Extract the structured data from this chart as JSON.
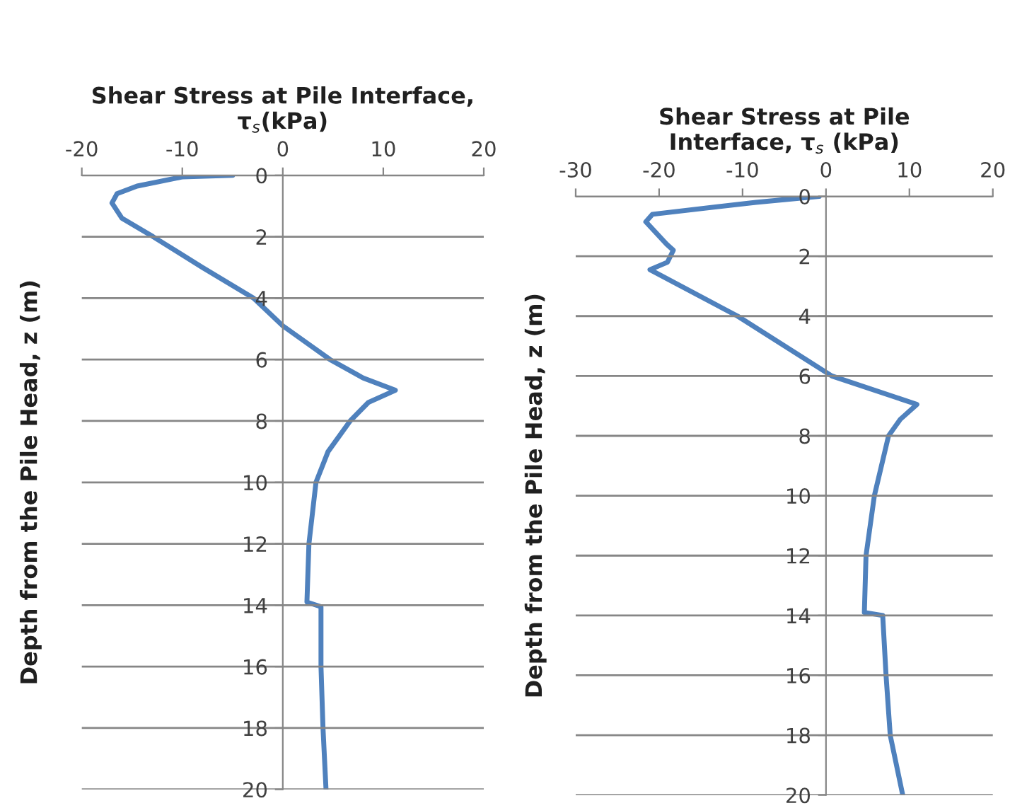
{
  "chart_data": [
    {
      "type": "line",
      "xlabel": "Shear Stress at Pile Interface,\nτ$_{s}$(kPa)",
      "ylabel": "Depth from the Pile Head, z (m)",
      "xlim": [
        -20,
        20
      ],
      "xticks": [
        -20,
        -10,
        0,
        10,
        20
      ],
      "ylim": [
        20,
        0
      ],
      "yticks": [
        0,
        2,
        4,
        6,
        8,
        10,
        12,
        14,
        16,
        18,
        20
      ],
      "grid": "y",
      "series": [
        {
          "color": "#4f81bd",
          "x": [
            -5,
            -10,
            -14.5,
            -16.5,
            -17,
            -16,
            -12.9,
            -8,
            -2.9,
            0,
            4.7,
            8,
            11.2,
            8.5,
            6.7,
            4.5,
            3.3,
            2.6,
            2.4,
            3.8,
            3.8,
            4.0,
            4.3
          ],
          "values": [
            0,
            0.05,
            0.35,
            0.6,
            0.9,
            1.4,
            2,
            3,
            4,
            4.9,
            6,
            6.6,
            7.0,
            7.4,
            8,
            9,
            10,
            12,
            13.9,
            14.05,
            16,
            18,
            20
          ]
        }
      ]
    },
    {
      "type": "line",
      "xlabel": "Shear Stress at Pile\nInterface, τ$_{s}$ (kPa)",
      "ylabel": "Depth from the Pile Head, z (m)",
      "xlim": [
        -30,
        20
      ],
      "xticks": [
        -30,
        -20,
        -10,
        0,
        10,
        20
      ],
      "ylim": [
        20,
        0
      ],
      "yticks": [
        0,
        2,
        4,
        6,
        8,
        10,
        12,
        14,
        16,
        18,
        20
      ],
      "grid": "y",
      "series": [
        {
          "color": "#4f81bd",
          "x": [
            -0.8,
            -8.4,
            -20.8,
            -21.6,
            -19.1,
            -18.3,
            -19,
            -21.1,
            -10.6,
            0.7,
            10.9,
            8.9,
            7.5,
            5.8,
            4.8,
            4.6,
            6.8,
            7.2,
            7.7,
            9.2
          ],
          "values": [
            0,
            0.2,
            0.6,
            0.85,
            1.6,
            1.8,
            2.2,
            2.45,
            4,
            6,
            6.95,
            7.45,
            8,
            10,
            12,
            13.9,
            14.0,
            16,
            18,
            20
          ]
        }
      ]
    }
  ]
}
